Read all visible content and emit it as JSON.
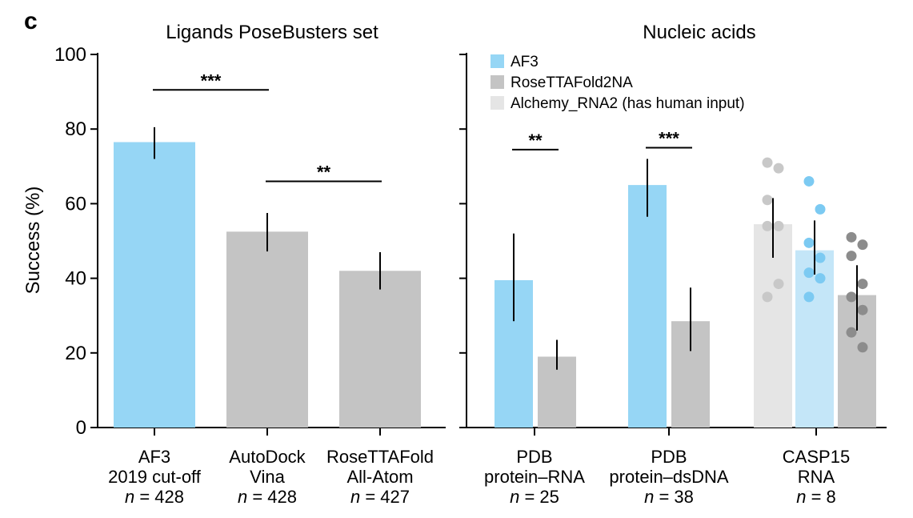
{
  "panel_label": "c",
  "colors": {
    "af3": "#96d6f5",
    "rosettafold": "#c4c4c4",
    "alchemy": "#e5e5e5",
    "af3_casp": "#c4e6f8",
    "af3_dots": "#7ccaf2",
    "rf_dots": "#8c8c8c",
    "alchemy_dots": "#c8c8c8"
  },
  "chart_data": [
    {
      "type": "bar",
      "title": "Ligands PoseBusters set",
      "ylabel": "Success (%)",
      "ylim": [
        0,
        100
      ],
      "yticks": [
        "0",
        "20",
        "40",
        "60",
        "80",
        "100"
      ],
      "categories": [
        {
          "lines": [
            "AF3",
            "2019 cut-off"
          ],
          "n": "428"
        },
        {
          "lines": [
            "AutoDock",
            "Vina"
          ],
          "n": "428"
        },
        {
          "lines": [
            "RoseTTAFold",
            "All-Atom"
          ],
          "n": "427"
        }
      ],
      "bars": [
        {
          "value": 76.5,
          "err": [
            72,
            80.5
          ],
          "color_key": "af3"
        },
        {
          "value": 52.5,
          "err": [
            47.2,
            57.5
          ],
          "color_key": "rosettafold"
        },
        {
          "value": 42,
          "err": [
            37,
            47
          ],
          "color_key": "rosettafold"
        }
      ],
      "significance": [
        {
          "from": 0,
          "to": 1,
          "label": "***",
          "y": 90.5
        },
        {
          "from": 1,
          "to": 2,
          "label": "**",
          "y": 66
        }
      ]
    },
    {
      "type": "bar",
      "title": "Nucleic acids",
      "ylim": [
        0,
        100
      ],
      "legend": [
        {
          "label": "AF3",
          "color_key": "af3"
        },
        {
          "label": "RoseTTAFold2NA",
          "color_key": "rosettafold"
        },
        {
          "label": "Alchemy_RNA2 (has human input)",
          "color_key": "alchemy"
        }
      ],
      "categories": [
        {
          "lines": [
            "PDB",
            "protein–RNA"
          ],
          "n": "25"
        },
        {
          "lines": [
            "PDB",
            "protein–dsDNA"
          ],
          "n": "38"
        },
        {
          "lines": [
            "CASP15",
            "RNA"
          ],
          "n": "8"
        }
      ],
      "series": [
        {
          "name": "AF3",
          "values": [
            39.5,
            65,
            47.5
          ]
        },
        {
          "name": "RoseTTAFold2NA",
          "values": [
            19,
            28.5,
            35.5
          ]
        },
        {
          "name": "Alchemy_RNA2 (has human input)",
          "values": [
            null,
            null,
            54.5
          ]
        }
      ],
      "bars": [
        {
          "group": 0,
          "value": 39.5,
          "err": [
            28.5,
            52
          ],
          "color_key": "af3"
        },
        {
          "group": 0,
          "value": 19,
          "err": [
            15.5,
            23.5
          ],
          "color_key": "rosettafold"
        },
        {
          "group": 1,
          "value": 65,
          "err": [
            56.5,
            72
          ],
          "color_key": "af3"
        },
        {
          "group": 1,
          "value": 28.5,
          "err": [
            20.5,
            37.5
          ],
          "color_key": "rosettafold"
        },
        {
          "group": 2,
          "value": 54.5,
          "err": [
            45.5,
            61.5
          ],
          "color_key": "alchemy",
          "dots": [
            71,
            69.5,
            61,
            54,
            54,
            38.5,
            35
          ],
          "dot_color_key": "alchemy_dots"
        },
        {
          "group": 2,
          "value": 47.5,
          "err": [
            41,
            55.5
          ],
          "color_key": "af3_casp",
          "dots": [
            66,
            58.5,
            49.5,
            45.5,
            41.5,
            40,
            35
          ],
          "dot_color_key": "af3_dots"
        },
        {
          "group": 2,
          "value": 35.5,
          "err": [
            26,
            43.5
          ],
          "color_key": "rosettafold",
          "dots": [
            51,
            49,
            46,
            38.5,
            35,
            31.5,
            25.5,
            21.5
          ],
          "dot_color_key": "rf_dots"
        }
      ],
      "significance": [
        {
          "group": 0,
          "label": "**",
          "y": 74.5
        },
        {
          "group": 1,
          "label": "***",
          "y": 75
        }
      ]
    }
  ]
}
